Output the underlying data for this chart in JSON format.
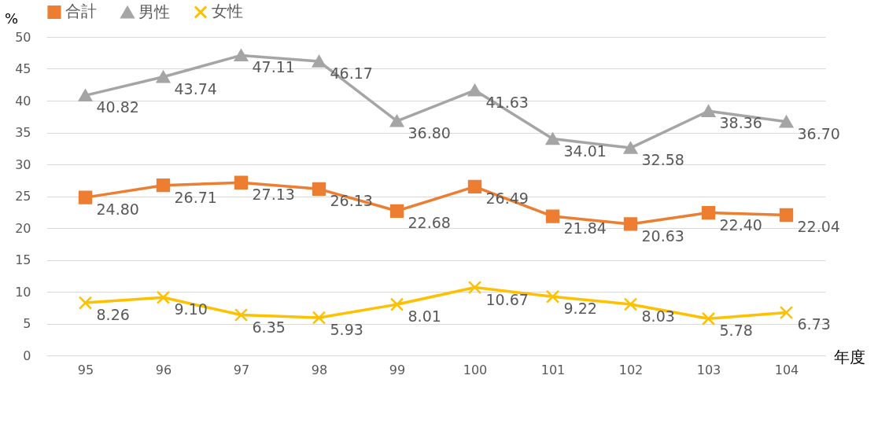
{
  "chart_data": {
    "type": "line",
    "categories": [
      "95",
      "96",
      "97",
      "98",
      "99",
      "100",
      "101",
      "102",
      "103",
      "104"
    ],
    "series": [
      {
        "name": "合計",
        "color": "#ed7d31",
        "marker": "square",
        "values": [
          24.8,
          26.71,
          27.13,
          26.13,
          22.68,
          26.49,
          21.84,
          20.63,
          22.4,
          22.04
        ],
        "value_labels": [
          "24.80",
          "26.71",
          "27.13",
          "26.13",
          "22.68",
          "26.49",
          "21.84",
          "20.63",
          "22.40",
          "22.04"
        ]
      },
      {
        "name": "男性",
        "color": "#a5a5a5",
        "marker": "triangle",
        "values": [
          40.82,
          43.74,
          47.11,
          46.17,
          36.8,
          41.63,
          34.01,
          32.58,
          38.36,
          36.7
        ],
        "value_labels": [
          "40.82",
          "43.74",
          "47.11",
          "46.17",
          "36.80",
          "41.63",
          "34.01",
          "32.58",
          "38.36",
          "36.70"
        ]
      },
      {
        "name": "女性",
        "color": "#ffc000",
        "marker": "cross",
        "values": [
          8.26,
          9.1,
          6.35,
          5.93,
          8.01,
          10.67,
          9.22,
          8.03,
          5.78,
          6.73
        ],
        "value_labels": [
          "8.26",
          "9.10",
          "6.35",
          "5.93",
          "8.01",
          "10.67",
          "9.22",
          "8.03",
          "5.78",
          "6.73"
        ]
      }
    ],
    "ylabel": "%",
    "xlabel": "年度",
    "ylim": [
      0,
      50
    ],
    "yticks": [
      0,
      5,
      10,
      15,
      20,
      25,
      30,
      35,
      40,
      45,
      50
    ],
    "grid": "y",
    "legend": "top",
    "line_style": "solid"
  }
}
